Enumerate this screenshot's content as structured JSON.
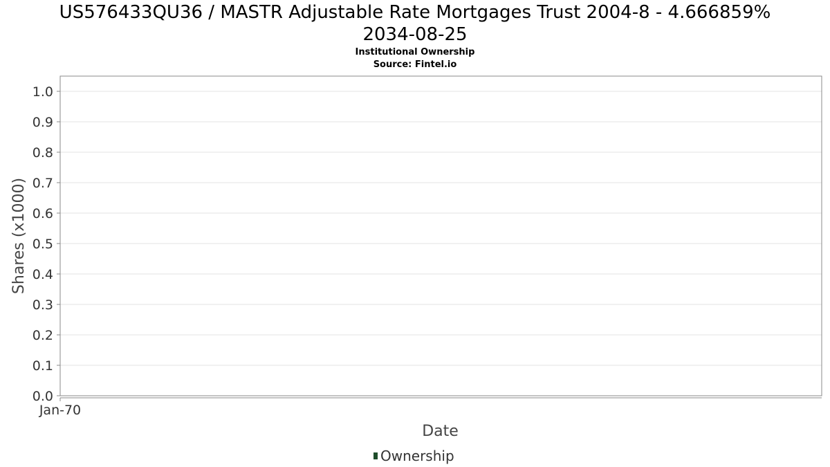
{
  "chart_data": {
    "type": "bar",
    "title": "US576433QU36 / MASTR Adjustable Rate Mortgages Trust 2004-8 - 4.666859% 2034-08-25",
    "title_line1": "US576433QU36 / MASTR Adjustable Rate Mortgages Trust 2004-8 - 4.666859%",
    "title_line2": "2034-08-25",
    "subtitle": "Institutional Ownership",
    "source": "Source: Fintel.io",
    "xlabel": "Date",
    "ylabel": "Shares (x1000)",
    "x_tick_labels": [
      "Jan-70"
    ],
    "y_ticks": [
      0.0,
      0.1,
      0.2,
      0.3,
      0.4,
      0.5,
      0.6,
      0.7,
      0.8,
      0.9,
      1.0
    ],
    "y_tick_labels": [
      "0.0",
      "0.1",
      "0.2",
      "0.3",
      "0.4",
      "0.5",
      "0.6",
      "0.7",
      "0.8",
      "0.9",
      "1.0"
    ],
    "ylim": [
      0,
      1.05
    ],
    "grid": true,
    "legend_placement": "bottom",
    "series": [
      {
        "name": "Ownership",
        "color": "#1f4d2b",
        "values": []
      }
    ],
    "colors": {
      "grid": "#e3e3e3",
      "frame": "#888888",
      "tick_text": "#333333"
    }
  }
}
